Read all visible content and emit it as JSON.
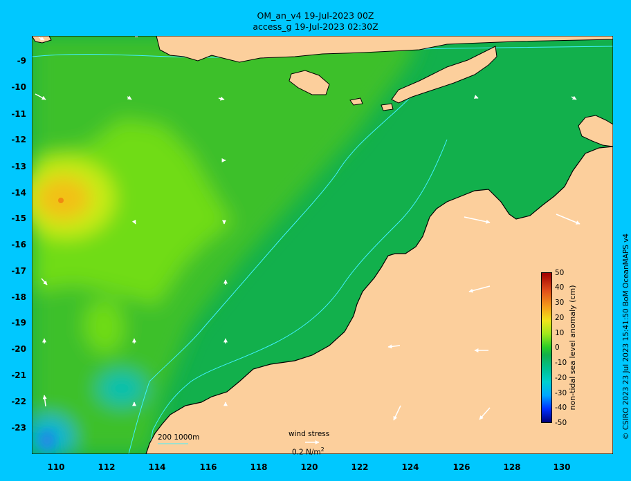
{
  "header": {
    "title_line1": "OM_an_v4  19-Jul-2023 00Z",
    "title_line2": "access_g 19-Jul-2023 02:30Z"
  },
  "axes": {
    "y_ticks": [
      "-9",
      "-10",
      "-11",
      "-12",
      "-13",
      "-14",
      "-15",
      "-16",
      "-17",
      "-18",
      "-19",
      "-20",
      "-21",
      "-22",
      "-23"
    ],
    "x_ticks": [
      "110",
      "112",
      "114",
      "116",
      "118",
      "120",
      "122",
      "124",
      "126",
      "128",
      "130"
    ]
  },
  "colorbar": {
    "label": "non-tidal sea level anomaly (cm)",
    "ticks": [
      "50",
      "40",
      "30",
      "20",
      "10",
      "0",
      "-10",
      "-20",
      "-30",
      "-40",
      "-50"
    ],
    "colors": {
      "land": "#fccf9c",
      "ocean_zero": "#27b24a",
      "ocean_high": "#f5a91a",
      "frame": "#00c8ff"
    }
  },
  "legend": {
    "isobaths": "200  1000m",
    "wind_stress_label": "wind stress",
    "wind_stress_scale": "0.2 N/m",
    "wind_stress_exp": "2"
  },
  "credit": "© CSIRO 2023   23 Jul 2023 15:41:50 BoM OceanMAPS v4"
}
